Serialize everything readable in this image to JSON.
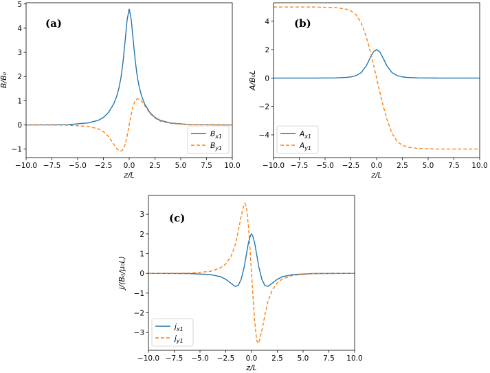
{
  "colors": {
    "blue": "#1f77b4",
    "orange": "#ff7f0e"
  },
  "chart_data": [
    {
      "id": "a",
      "type": "line",
      "tag": "(a)",
      "xlabel": "z/L",
      "ylabel": "B/B₀",
      "xlim": [
        -10,
        10
      ],
      "ylim": [
        -1.35,
        5.05
      ],
      "xticks": [
        -10,
        -7.5,
        -5,
        -2.5,
        0,
        2.5,
        5,
        7.5,
        10
      ],
      "xticklabels": [
        "−10.0",
        "−7.5",
        "−5.0",
        "−2.5",
        "0.0",
        "2.5",
        "5.0",
        "7.5",
        "10.0"
      ],
      "yticks": [
        -1,
        0,
        1,
        2,
        3,
        4,
        5
      ],
      "yticklabels": [
        "−1",
        "0",
        "1",
        "2",
        "3",
        "4",
        "5"
      ],
      "legend_position": "lower-right",
      "series": [
        {
          "name": "Bₓ₁",
          "label_main": "B",
          "label_sub": "x1",
          "style": "solid",
          "color": "#1f77b4",
          "x": [
            -10,
            -6,
            -4,
            -3,
            -2.5,
            -2,
            -1.5,
            -1.2,
            -1,
            -0.8,
            -0.6,
            -0.4,
            -0.2,
            0,
            0.2,
            0.4,
            0.6,
            0.8,
            1,
            1.2,
            1.5,
            2,
            2.5,
            3,
            4,
            6,
            10
          ],
          "y": [
            0,
            0.01,
            0.08,
            0.19,
            0.31,
            0.52,
            0.87,
            1.2,
            1.52,
            1.95,
            2.6,
            3.45,
            4.35,
            4.8,
            4.35,
            3.45,
            2.6,
            1.95,
            1.52,
            1.2,
            0.87,
            0.52,
            0.31,
            0.19,
            0.08,
            0.01,
            0
          ]
        },
        {
          "name": "Bᵧ₁",
          "label_main": "B",
          "label_sub": "y1",
          "style": "dashed",
          "color": "#ff7f0e",
          "x": [
            -10,
            -6,
            -4,
            -3,
            -2.5,
            -2,
            -1.5,
            -1.2,
            -1,
            -0.8,
            -0.6,
            -0.4,
            -0.2,
            0,
            0.2,
            0.4,
            0.6,
            0.8,
            1,
            1.2,
            1.5,
            2,
            2.5,
            3,
            4,
            6,
            10
          ],
          "y": [
            0,
            -0.01,
            -0.06,
            -0.16,
            -0.28,
            -0.48,
            -0.8,
            -0.98,
            -1.06,
            -1.08,
            -1.02,
            -0.82,
            -0.45,
            0,
            0.45,
            0.82,
            1.02,
            1.08,
            1.06,
            0.98,
            0.8,
            0.48,
            0.28,
            0.16,
            0.06,
            0.01,
            0
          ]
        }
      ]
    },
    {
      "id": "b",
      "type": "line",
      "tag": "(b)",
      "xlabel": "z/L",
      "ylabel": "A/B₀L",
      "xlim": [
        -10,
        10
      ],
      "ylim": [
        -5.6,
        5.3
      ],
      "xticks": [
        -10,
        -7.5,
        -5,
        -2.5,
        0,
        2.5,
        5,
        7.5,
        10
      ],
      "xticklabels": [
        "−10.0",
        "−7.5",
        "−5.0",
        "−2.5",
        "0.0",
        "2.5",
        "5.0",
        "7.5",
        "10.0"
      ],
      "yticks": [
        -4,
        -2,
        0,
        2,
        4
      ],
      "yticklabels": [
        "−4",
        "−2",
        "0",
        "2",
        "4"
      ],
      "legend_position": "lower-left",
      "series": [
        {
          "name": "Aₓ₁",
          "label_main": "A",
          "label_sub": "x1",
          "style": "solid",
          "color": "#1f77b4",
          "x": [
            -10,
            -6,
            -4,
            -3,
            -2.5,
            -2,
            -1.5,
            -1,
            -0.6,
            -0.3,
            0,
            0.3,
            0.6,
            1,
            1.5,
            2,
            2.5,
            3,
            4,
            6,
            10
          ],
          "y": [
            0,
            0,
            0.01,
            0.04,
            0.08,
            0.17,
            0.38,
            0.86,
            1.45,
            1.85,
            2,
            1.85,
            1.45,
            0.86,
            0.38,
            0.17,
            0.08,
            0.04,
            0.01,
            0,
            0
          ]
        },
        {
          "name": "Aᵧ₁",
          "label_main": "A",
          "label_sub": "y1",
          "style": "dashed",
          "color": "#ff7f0e",
          "x": [
            -10,
            -6,
            -4,
            -3,
            -2.5,
            -2,
            -1.5,
            -1,
            -0.6,
            -0.3,
            0,
            0.3,
            0.6,
            1,
            1.5,
            2,
            2.5,
            3,
            4,
            6,
            10
          ],
          "y": [
            5,
            5,
            4.96,
            4.86,
            4.73,
            4.46,
            3.9,
            2.9,
            1.85,
            0.95,
            0,
            -0.95,
            -1.85,
            -2.9,
            -3.9,
            -4.46,
            -4.73,
            -4.86,
            -4.96,
            -5,
            -5
          ]
        }
      ]
    },
    {
      "id": "c",
      "type": "line",
      "tag": "(c)",
      "xlabel": "z/L",
      "ylabel": "j/(B₀/μ₀L)",
      "xlim": [
        -10,
        10
      ],
      "ylim": [
        -3.9,
        3.95
      ],
      "xticks": [
        -10,
        -7.5,
        -5,
        -2.5,
        0,
        2.5,
        5,
        7.5,
        10
      ],
      "xticklabels": [
        "−10.0",
        "−7.5",
        "−5.0",
        "−2.5",
        "0.0",
        "2.5",
        "5.0",
        "7.5",
        "10.0"
      ],
      "yticks": [
        -3,
        -2,
        -1,
        0,
        1,
        2,
        3
      ],
      "yticklabels": [
        "−3",
        "−2",
        "−1",
        "0",
        "1",
        "2",
        "3"
      ],
      "legend_position": "lower-left",
      "series": [
        {
          "name": "jₓ₁",
          "label_main": "j",
          "label_sub": "x1",
          "style": "solid",
          "color": "#1f77b4",
          "x": [
            -10,
            -6,
            -4,
            -3,
            -2.5,
            -2,
            -1.6,
            -1.3,
            -1,
            -0.7,
            -0.5,
            -0.3,
            -0.1,
            0,
            0.1,
            0.3,
            0.5,
            0.7,
            1,
            1.3,
            1.6,
            2,
            2.5,
            3,
            4,
            6,
            10
          ],
          "y": [
            0,
            -0.01,
            -0.06,
            -0.17,
            -0.3,
            -0.5,
            -0.66,
            -0.62,
            -0.3,
            0.35,
            0.95,
            1.55,
            1.93,
            2,
            1.93,
            1.55,
            0.95,
            0.35,
            -0.3,
            -0.62,
            -0.66,
            -0.5,
            -0.3,
            -0.17,
            -0.06,
            -0.01,
            0
          ]
        },
        {
          "name": "jᵧ₁",
          "label_main": "j",
          "label_sub": "y1",
          "style": "dashed",
          "color": "#ff7f0e",
          "x": [
            -10,
            -6,
            -4,
            -3,
            -2.5,
            -2,
            -1.6,
            -1.3,
            -1,
            -0.8,
            -0.65,
            -0.5,
            -0.3,
            -0.1,
            0,
            0.1,
            0.3,
            0.5,
            0.65,
            0.8,
            1,
            1.3,
            1.6,
            2,
            2.5,
            3,
            4,
            6,
            10
          ],
          "y": [
            0,
            0.01,
            0.1,
            0.28,
            0.48,
            0.85,
            1.4,
            2.1,
            2.9,
            3.35,
            3.55,
            3.4,
            2.4,
            0.85,
            0,
            -0.85,
            -2.4,
            -3.4,
            -3.55,
            -3.35,
            -2.9,
            -2.1,
            -1.4,
            -0.85,
            -0.48,
            -0.28,
            -0.1,
            -0.01,
            0
          ]
        }
      ]
    }
  ]
}
